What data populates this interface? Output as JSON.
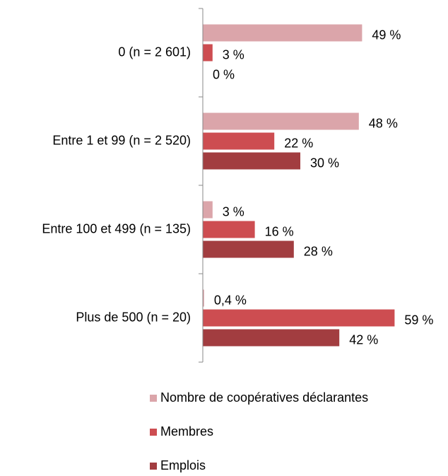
{
  "chart_data": {
    "type": "hbar",
    "categories": [
      "0 (n = 2 601)",
      "Entre 1 et 99 (n = 2 520)",
      "Entre 100 et 499 (n = 135)",
      "Plus de 500 (n = 20)"
    ],
    "series": [
      {
        "name": "Nombre de coopératives déclarantes",
        "color": "#dba5aa",
        "values": [
          49,
          48,
          3,
          0.4
        ],
        "value_labels": [
          "49 %",
          "48 %",
          "3 %",
          "0,4 %"
        ]
      },
      {
        "name": "Membres",
        "color": "#cd4d51",
        "values": [
          3,
          22,
          16,
          59
        ],
        "value_labels": [
          "3 %",
          "22 %",
          "16 %",
          "59 %"
        ]
      },
      {
        "name": "Emplois",
        "color": "#a23d40",
        "values": [
          0,
          30,
          28,
          42
        ],
        "value_labels": [
          "0 %",
          "30 %",
          "28 %",
          "42 %"
        ]
      }
    ],
    "xlim": [
      0,
      70
    ],
    "legend": "bottom"
  }
}
